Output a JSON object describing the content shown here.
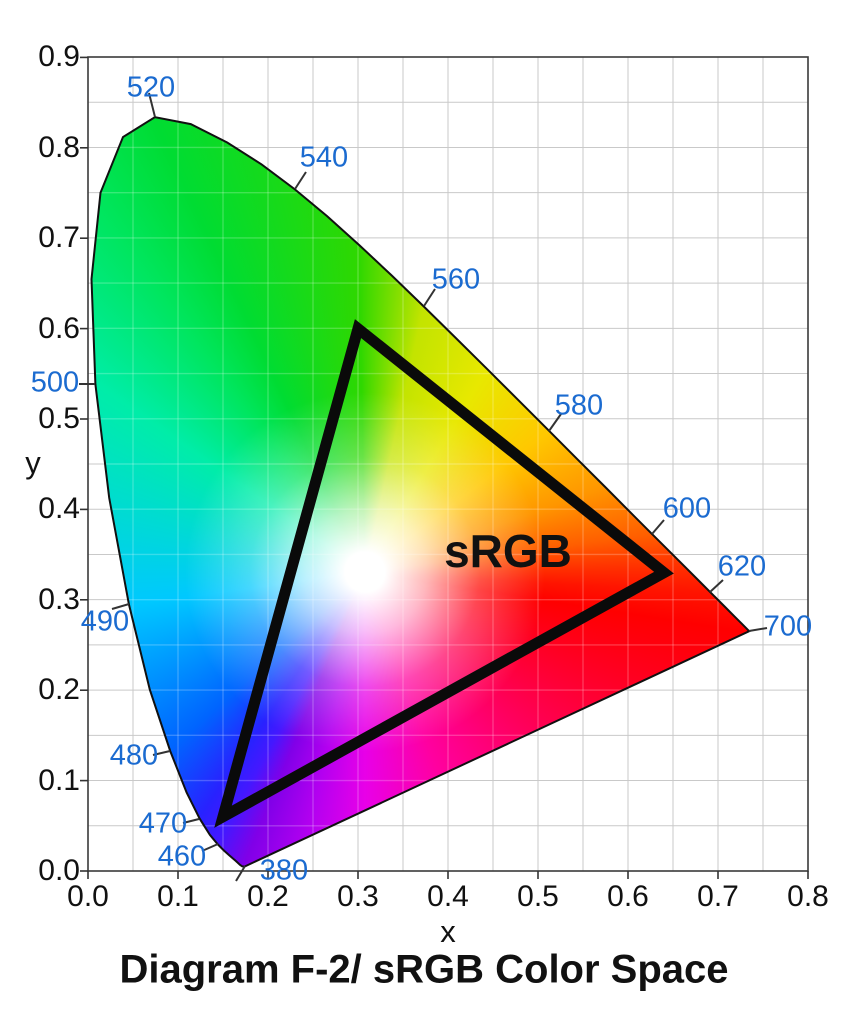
{
  "title": "Diagram F-2/ sRGB Color Space",
  "gamut_label": "sRGB",
  "axes": {
    "x_label": "x",
    "y_label": "y"
  },
  "colors": {
    "wavelength_label_blue": "#1B6BD0",
    "grid_line": "#C9C9C9",
    "grid_over_fill": "rgba(255,255,255,0.22)",
    "axis_frame": "#3A3A3A",
    "tick_mark": "#333333",
    "locus_outline": "#111111",
    "gamut_triangle": "#0A0A0A",
    "text": "#111111",
    "background": "#FFFFFF"
  },
  "chart_data": {
    "type": "area",
    "title": "Diagram F-2/ sRGB Color Space",
    "xlabel": "x",
    "ylabel": "y",
    "xlim": [
      0.0,
      0.8
    ],
    "ylim": [
      0.0,
      0.9
    ],
    "grid": true,
    "grid_step": 0.05,
    "x_ticks": [
      "0.0",
      "0.1",
      "0.2",
      "0.3",
      "0.4",
      "0.5",
      "0.6",
      "0.7",
      "0.8"
    ],
    "y_ticks": [
      "0.9",
      "0.8",
      "0.7",
      "0.6",
      "0.5",
      "0.4",
      "0.3",
      "0.2",
      "0.1",
      "0.0"
    ],
    "description": "CIE 1931 xy chromaticity diagram (spectral locus horseshoe filled with spectrum colors) with the sRGB gamut triangle outlined in black",
    "spectral_locus": [
      [
        380,
        0.1741,
        0.005
      ],
      [
        420,
        0.1714,
        0.0051
      ],
      [
        430,
        0.1689,
        0.0069
      ],
      [
        440,
        0.1644,
        0.0109
      ],
      [
        450,
        0.1566,
        0.0177
      ],
      [
        455,
        0.151,
        0.0227
      ],
      [
        460,
        0.144,
        0.0297
      ],
      [
        465,
        0.1355,
        0.0399
      ],
      [
        470,
        0.1241,
        0.0578
      ],
      [
        475,
        0.1096,
        0.0868
      ],
      [
        480,
        0.0913,
        0.1327
      ],
      [
        485,
        0.0687,
        0.2007
      ],
      [
        490,
        0.0454,
        0.295
      ],
      [
        495,
        0.0235,
        0.4127
      ],
      [
        500,
        0.0082,
        0.5384
      ],
      [
        505,
        0.0039,
        0.6548
      ],
      [
        510,
        0.0139,
        0.7502
      ],
      [
        515,
        0.0389,
        0.812
      ],
      [
        520,
        0.0743,
        0.8338
      ],
      [
        525,
        0.1142,
        0.8262
      ],
      [
        530,
        0.1547,
        0.8059
      ],
      [
        535,
        0.1929,
        0.7816
      ],
      [
        540,
        0.2296,
        0.7543
      ],
      [
        545,
        0.2658,
        0.7243
      ],
      [
        550,
        0.3016,
        0.6923
      ],
      [
        555,
        0.3373,
        0.6589
      ],
      [
        560,
        0.3731,
        0.6245
      ],
      [
        565,
        0.4087,
        0.5896
      ],
      [
        570,
        0.4441,
        0.5547
      ],
      [
        575,
        0.4788,
        0.5202
      ],
      [
        580,
        0.5125,
        0.4866
      ],
      [
        585,
        0.5448,
        0.4544
      ],
      [
        590,
        0.5752,
        0.4242
      ],
      [
        595,
        0.6029,
        0.3965
      ],
      [
        600,
        0.627,
        0.3725
      ],
      [
        605,
        0.6482,
        0.3514
      ],
      [
        610,
        0.6658,
        0.334
      ],
      [
        615,
        0.6801,
        0.3197
      ],
      [
        620,
        0.6915,
        0.3083
      ],
      [
        630,
        0.7079,
        0.292
      ],
      [
        640,
        0.719,
        0.2809
      ],
      [
        650,
        0.726,
        0.274
      ],
      [
        660,
        0.73,
        0.27
      ],
      [
        700,
        0.7347,
        0.2653
      ]
    ],
    "srgb_gamut": {
      "label": "sRGB",
      "primaries": {
        "red": [
          0.64,
          0.33
        ],
        "green": [
          0.3,
          0.6
        ],
        "blue": [
          0.15,
          0.06
        ]
      }
    },
    "wavelength_labels": [
      {
        "wl": 380,
        "label": "380"
      },
      {
        "wl": 460,
        "label": "460"
      },
      {
        "wl": 470,
        "label": "470"
      },
      {
        "wl": 480,
        "label": "480"
      },
      {
        "wl": 490,
        "label": "490"
      },
      {
        "wl": 500,
        "label": "500"
      },
      {
        "wl": 520,
        "label": "520"
      },
      {
        "wl": 540,
        "label": "540"
      },
      {
        "wl": 560,
        "label": "560"
      },
      {
        "wl": 580,
        "label": "580"
      },
      {
        "wl": 600,
        "label": "600"
      },
      {
        "wl": 620,
        "label": "620"
      },
      {
        "wl": 700,
        "label": "700"
      }
    ]
  }
}
